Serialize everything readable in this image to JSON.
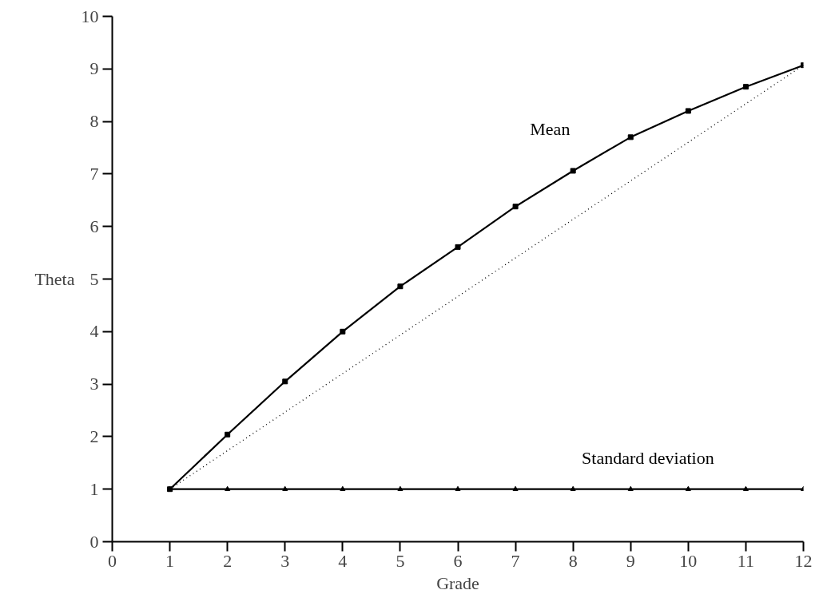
{
  "chart_data": {
    "type": "line",
    "xlabel": "Grade",
    "ylabel": "Theta",
    "x": [
      1,
      2,
      3,
      4,
      5,
      6,
      7,
      8,
      9,
      10,
      11,
      12
    ],
    "xlim": [
      0,
      12
    ],
    "ylim": [
      0,
      10
    ],
    "xticks": [
      0,
      1,
      2,
      3,
      4,
      5,
      6,
      7,
      8,
      9,
      10,
      11,
      12
    ],
    "yticks": [
      0,
      1,
      2,
      3,
      4,
      5,
      6,
      7,
      8,
      9,
      10
    ],
    "grid": false,
    "legend": false,
    "series": [
      {
        "name": "Mean",
        "color": "#000000",
        "marker": "square",
        "line_style": "solid",
        "values": [
          1,
          2.04,
          3.05,
          4.0,
          4.86,
          5.61,
          6.38,
          7.06,
          7.7,
          8.2,
          8.66,
          9.07
        ]
      },
      {
        "color": "#000000",
        "line_style": "dotted",
        "x": [
          1,
          12
        ],
        "values": [
          1,
          9.07
        ]
      },
      {
        "name": "Standard deviation",
        "color": "#000000",
        "marker": "triangle",
        "line_style": "solid",
        "values": [
          1,
          1,
          1,
          1,
          1,
          1,
          1,
          1,
          1,
          1,
          1,
          1
        ]
      }
    ]
  }
}
